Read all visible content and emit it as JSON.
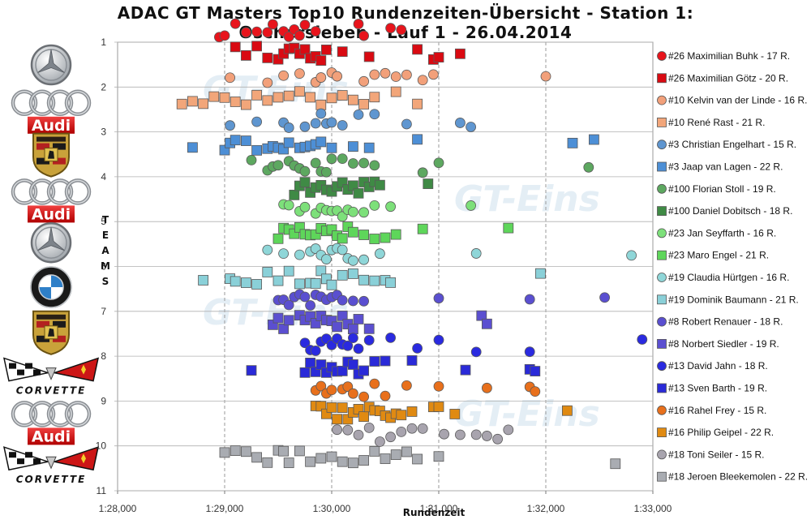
{
  "title_line1": "ADAC GT Masters Top10 Rundenzeiten-Übersicht - Station 1:",
  "title_line2": "Oschersleben - Lauf 1 - 26.04.2014",
  "logos": [
    {
      "icon": "mercedes-logo-icon"
    },
    {
      "icon": "audi-logo-icon",
      "text": "Audi"
    },
    {
      "icon": "porsche-logo-icon"
    },
    {
      "icon": "audi-logo-icon",
      "text": "Audi"
    },
    {
      "icon": "mercedes-logo-icon"
    },
    {
      "icon": "bmw-logo-icon"
    },
    {
      "icon": "porsche-logo-icon"
    },
    {
      "icon": "corvette-logo-icon",
      "text": "CORVETTE"
    },
    {
      "icon": "audi-logo-icon",
      "text": "Audi"
    },
    {
      "icon": "corvette-logo-icon",
      "text": "CORVETTE"
    }
  ],
  "watermark_text": "GT-Eins",
  "chart_data": {
    "type": "scatter",
    "xlabel": "Rundenzeit",
    "ylabel": "TEAMS",
    "xlim": [
      88.0,
      93.0
    ],
    "ylim": [
      1,
      11
    ],
    "x_ticks": [
      "1:28,000",
      "1:29,000",
      "1:30,000",
      "1:31,000",
      "1:32,000",
      "1:33,000"
    ],
    "y_ticks": [
      "1",
      "2",
      "3",
      "4",
      "5",
      "6",
      "7",
      "8",
      "9",
      "10",
      "11"
    ],
    "grid": "vertical dashed",
    "legend": "right",
    "series": [
      {
        "name": "#26 Maximilian Buhk - 17 R.",
        "team": 1,
        "sub": 0,
        "shape": "circle",
        "color": "#e8141c",
        "laps": [
          88.95,
          89.0,
          89.1,
          89.2,
          89.3,
          89.4,
          89.45,
          89.55,
          89.6,
          89.65,
          89.7,
          89.75,
          89.85,
          90.25,
          90.3,
          90.55,
          90.65
        ]
      },
      {
        "name": "#26 Maximilian Götz - 20 R.",
        "team": 1,
        "sub": 1,
        "shape": "square",
        "color": "#d90a12",
        "laps": [
          89.1,
          89.2,
          89.3,
          89.4,
          89.5,
          89.55,
          89.6,
          89.65,
          89.7,
          89.75,
          89.8,
          89.85,
          89.9,
          89.95,
          90.1,
          90.35,
          90.8,
          90.95,
          91.0,
          91.2
        ]
      },
      {
        "name": "#10 Kelvin van der Linde - 16 R.",
        "team": 2,
        "sub": 0,
        "shape": "circle",
        "color": "#f2a07a",
        "laps": [
          89.05,
          89.4,
          89.55,
          89.7,
          89.85,
          89.9,
          90.0,
          90.05,
          90.3,
          90.4,
          90.5,
          90.6,
          90.7,
          90.85,
          90.95,
          92.0
        ]
      },
      {
        "name": "#10 René Rast - 21 R.",
        "team": 2,
        "sub": 1,
        "shape": "square",
        "color": "#f2a67a",
        "laps": [
          88.6,
          88.7,
          88.8,
          88.9,
          89.0,
          89.1,
          89.2,
          89.3,
          89.4,
          89.5,
          89.6,
          89.7,
          89.8,
          89.9,
          90.0,
          90.1,
          90.2,
          90.3,
          90.4,
          90.6,
          90.8
        ]
      },
      {
        "name": "#3 Christian Engelhart - 15 R.",
        "team": 3,
        "sub": 0,
        "shape": "circle",
        "color": "#5f96d0",
        "laps": [
          89.05,
          89.3,
          89.55,
          89.6,
          89.75,
          89.85,
          89.9,
          89.95,
          90.0,
          90.1,
          90.25,
          90.4,
          90.7,
          91.2,
          91.3
        ]
      },
      {
        "name": "#3 Jaap van Lagen - 22 R.",
        "team": 3,
        "sub": 1,
        "shape": "square",
        "color": "#4d8fd6",
        "laps": [
          88.7,
          89.0,
          89.05,
          89.1,
          89.2,
          89.3,
          89.4,
          89.45,
          89.5,
          89.55,
          89.6,
          89.7,
          89.75,
          89.8,
          89.85,
          89.9,
          90.0,
          90.2,
          90.35,
          90.8,
          92.25,
          92.45
        ]
      },
      {
        "name": "#100 Florian Stoll - 19 R.",
        "team": 4,
        "sub": 0,
        "shape": "circle",
        "color": "#5da860",
        "laps": [
          89.25,
          89.4,
          89.45,
          89.5,
          89.6,
          89.65,
          89.7,
          89.75,
          89.85,
          89.9,
          89.95,
          90.0,
          90.1,
          90.2,
          90.3,
          90.4,
          90.85,
          91.0,
          92.4
        ]
      },
      {
        "name": "#100 Daniel Dobitsch - 18 R.",
        "team": 4,
        "sub": 1,
        "shape": "square",
        "color": "#3f8a45",
        "laps": [
          89.65,
          89.7,
          89.75,
          89.8,
          89.85,
          89.9,
          89.95,
          90.0,
          90.05,
          90.1,
          90.15,
          90.2,
          90.25,
          90.3,
          90.35,
          90.4,
          90.45,
          90.9
        ]
      },
      {
        "name": "#23 Jan Seyffarth - 16 R.",
        "team": 5,
        "sub": 0,
        "shape": "circle",
        "color": "#7de07a",
        "laps": [
          89.55,
          89.6,
          89.7,
          89.75,
          89.85,
          89.9,
          89.95,
          90.0,
          90.05,
          90.1,
          90.15,
          90.2,
          90.3,
          90.4,
          90.55,
          91.3
        ]
      },
      {
        "name": "#23 Maro Engel - 21 R.",
        "team": 5,
        "sub": 1,
        "shape": "square",
        "color": "#5ed65a",
        "laps": [
          89.5,
          89.55,
          89.6,
          89.65,
          89.7,
          89.75,
          89.8,
          89.85,
          89.9,
          89.95,
          90.0,
          90.05,
          90.1,
          90.15,
          90.2,
          90.3,
          90.4,
          90.5,
          90.6,
          90.85,
          91.65
        ]
      },
      {
        "name": "#19 Claudia Hürtgen - 16 R.",
        "team": 6,
        "sub": 0,
        "shape": "circle",
        "color": "#8fd6d8",
        "laps": [
          89.4,
          89.55,
          89.7,
          89.8,
          89.85,
          89.9,
          89.95,
          90.0,
          90.05,
          90.1,
          90.15,
          90.2,
          90.3,
          90.45,
          91.35,
          92.8
        ]
      },
      {
        "name": "#19 Dominik Baumann - 21 R.",
        "team": 6,
        "sub": 1,
        "shape": "square",
        "color": "#8ad0d8",
        "laps": [
          88.8,
          89.05,
          89.1,
          89.2,
          89.3,
          89.4,
          89.5,
          89.6,
          89.7,
          89.8,
          89.85,
          89.9,
          89.95,
          90.0,
          90.1,
          90.2,
          90.3,
          90.4,
          90.5,
          90.55,
          91.95
        ]
      },
      {
        "name": "#8 Robert Renauer - 18 R.",
        "team": 7,
        "sub": 0,
        "shape": "circle",
        "color": "#5a4fd0",
        "laps": [
          89.5,
          89.55,
          89.6,
          89.65,
          89.7,
          89.75,
          89.8,
          89.85,
          89.9,
          89.95,
          90.0,
          90.05,
          90.1,
          90.2,
          90.3,
          91.0,
          91.85,
          92.55
        ]
      },
      {
        "name": "#8 Norbert Siedler - 19 R.",
        "team": 7,
        "sub": 1,
        "shape": "square",
        "color": "#5b4fd0",
        "laps": [
          89.45,
          89.5,
          89.55,
          89.6,
          89.7,
          89.75,
          89.8,
          89.85,
          89.9,
          89.95,
          90.0,
          90.05,
          90.1,
          90.15,
          90.2,
          90.25,
          90.35,
          91.4,
          91.45
        ]
      },
      {
        "name": "#13 David Jahn - 18 R.",
        "team": 8,
        "sub": 0,
        "shape": "circle",
        "color": "#2a2ae0",
        "laps": [
          89.75,
          89.8,
          89.85,
          89.9,
          89.95,
          90.0,
          90.05,
          90.1,
          90.15,
          90.2,
          90.25,
          90.35,
          90.55,
          90.8,
          91.0,
          91.35,
          91.85,
          92.9
        ]
      },
      {
        "name": "#13 Sven Barth - 19 R.",
        "team": 8,
        "sub": 1,
        "shape": "square",
        "color": "#2a2ad8",
        "laps": [
          89.25,
          89.75,
          89.8,
          89.85,
          89.9,
          89.95,
          90.0,
          90.05,
          90.1,
          90.15,
          90.2,
          90.25,
          90.3,
          90.4,
          90.5,
          90.75,
          91.25,
          91.85,
          91.9
        ]
      },
      {
        "name": "#16 Rahel Frey - 15 R.",
        "team": 9,
        "sub": 0,
        "shape": "circle",
        "color": "#e8701c",
        "laps": [
          89.85,
          89.9,
          89.95,
          90.0,
          90.1,
          90.15,
          90.2,
          90.3,
          90.4,
          90.5,
          90.7,
          91.0,
          91.45,
          91.85,
          91.9
        ]
      },
      {
        "name": "#16 Philip Geipel - 22 R.",
        "team": 9,
        "sub": 1,
        "shape": "square",
        "color": "#e08a12",
        "laps": [
          89.85,
          89.9,
          89.95,
          90.0,
          90.05,
          90.1,
          90.15,
          90.2,
          90.25,
          90.3,
          90.35,
          90.4,
          90.45,
          90.5,
          90.55,
          90.6,
          90.65,
          90.75,
          90.95,
          91.0,
          91.15,
          92.2
        ]
      },
      {
        "name": "#18 Toni Seiler - 15 R.",
        "team": 10,
        "sub": 0,
        "shape": "circle",
        "color": "#a8a4ae",
        "laps": [
          90.05,
          90.15,
          90.25,
          90.35,
          90.45,
          90.55,
          90.65,
          90.75,
          90.85,
          91.05,
          91.2,
          91.35,
          91.45,
          91.55,
          91.65
        ]
      },
      {
        "name": "#18 Jeroen Bleekemolen - 22 R.",
        "team": 10,
        "sub": 1,
        "shape": "square",
        "color": "#a9acb2",
        "laps": [
          89.0,
          89.1,
          89.2,
          89.3,
          89.4,
          89.5,
          89.55,
          89.6,
          89.7,
          89.8,
          89.9,
          90.0,
          90.1,
          90.2,
          90.3,
          90.4,
          90.5,
          90.6,
          90.7,
          90.8,
          91.0,
          92.65
        ]
      }
    ]
  }
}
